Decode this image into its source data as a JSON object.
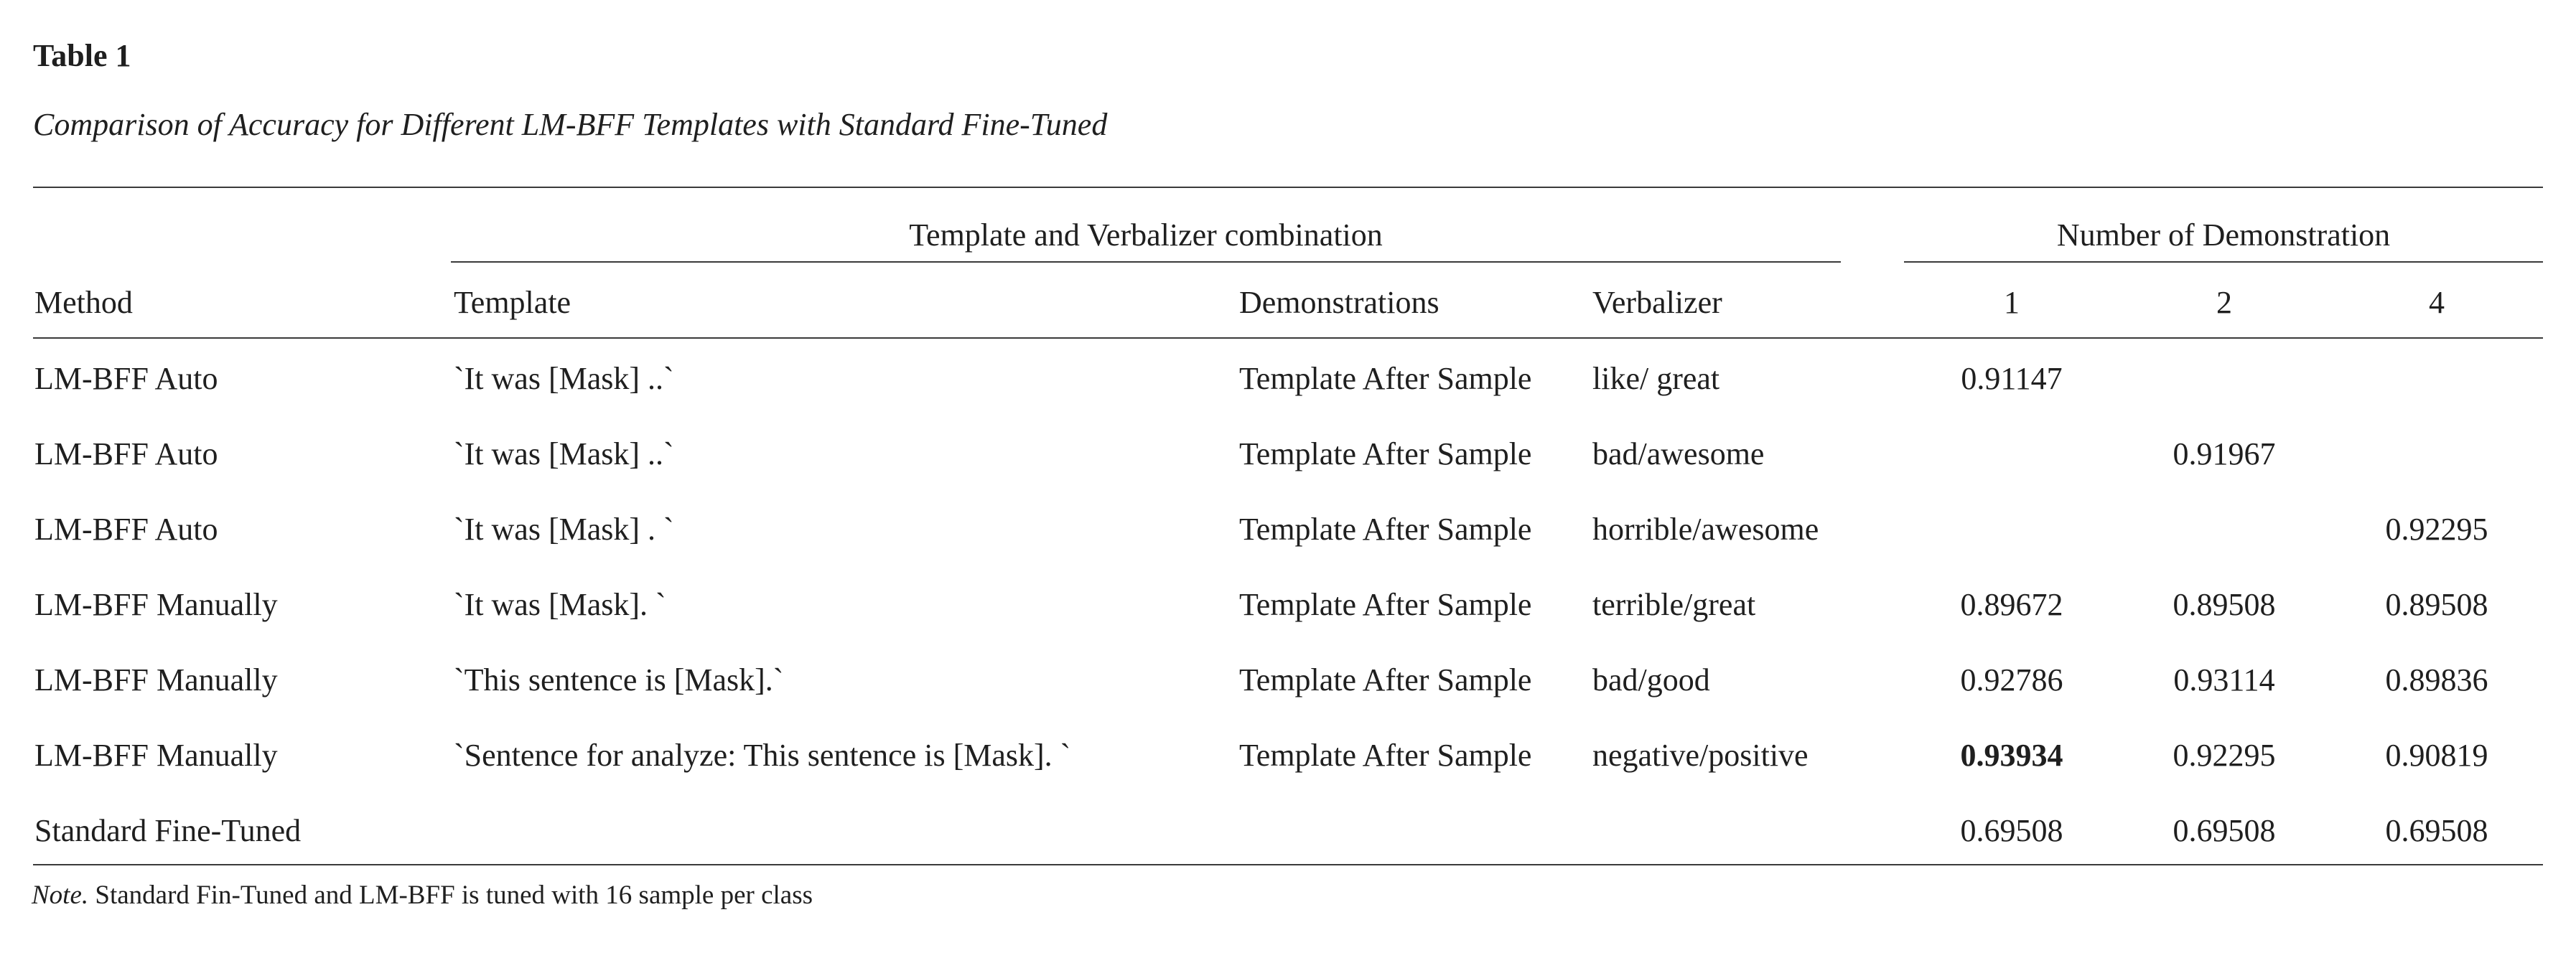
{
  "table_label": "Table 1",
  "caption": "Comparison of Accuracy for Different LM-BFF Templates with Standard Fine-Tuned",
  "group_headers": {
    "template_verbalizer": "Template and Verbalizer combination",
    "num_demonstration": "Number of Demonstration"
  },
  "columns": {
    "method": "Method",
    "template": "Template",
    "demonstrations": "Demonstrations",
    "verbalizer": "Verbalizer",
    "d1": "1",
    "d2": "2",
    "d4": "4"
  },
  "rows": [
    {
      "method": "LM-BFF Auto",
      "template": "`It was [Mask] ..`",
      "demonstrations": "Template After Sample",
      "verbalizer": "like/ great",
      "d1": "0.91147",
      "d2": "",
      "d4": ""
    },
    {
      "method": "LM-BFF Auto",
      "template": "`It was [Mask] ..`",
      "demonstrations": "Template After Sample",
      "verbalizer": "bad/awesome",
      "d1": "",
      "d2": "0.91967",
      "d4": ""
    },
    {
      "method": "LM-BFF Auto",
      "template": "`It was [Mask] . `",
      "demonstrations": "Template After Sample",
      "verbalizer": "horrible/awesome",
      "d1": "",
      "d2": "",
      "d4": "0.92295"
    },
    {
      "method": "LM-BFF Manually",
      "template": "`It was [Mask]. `",
      "demonstrations": "Template After Sample",
      "verbalizer": "terrible/great",
      "d1": "0.89672",
      "d2": "0.89508",
      "d4": "0.89508"
    },
    {
      "method": "LM-BFF Manually",
      "template": "`This sentence is [Mask].`",
      "demonstrations": "Template After Sample",
      "verbalizer": "bad/good",
      "d1": "0.92786",
      "d2": "0.93114",
      "d4": "0.89836"
    },
    {
      "method": "LM-BFF Manually",
      "template": "`Sentence for analyze: This sentence is [Mask]. `",
      "demonstrations": "Template After Sample",
      "verbalizer": "negative/positive",
      "d1": "0.93934",
      "d2": "0.92295",
      "d4": "0.90819"
    },
    {
      "method": "Standard Fine-Tuned",
      "template": "",
      "demonstrations": "",
      "verbalizer": "",
      "d1": "0.69508",
      "d2": "0.69508",
      "d4": "0.69508"
    }
  ],
  "note": {
    "label": "Note.",
    "text": " Standard Fin-Tuned and LM-BFF is tuned with 16 sample per class"
  }
}
